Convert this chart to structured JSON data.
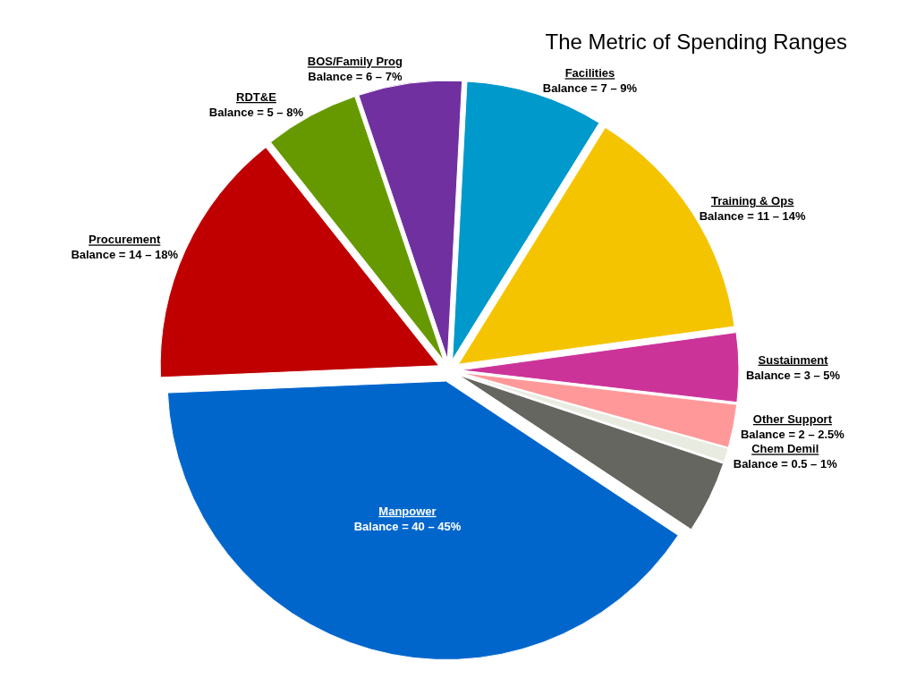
{
  "chart_data": {
    "type": "pie",
    "title": "The Metric of Spending Ranges",
    "categories": [
      "Facilities",
      "Training & Ops",
      "Sustainment",
      "Other Support",
      "Chem Demil",
      null,
      "Manpower",
      "Procurement",
      "RDT&E",
      "BOS/Family Prog"
    ],
    "values": [
      8,
      14,
      4,
      2.5,
      0.8,
      4.2,
      40,
      15,
      5.5,
      6
    ],
    "colors": [
      "#0099cc",
      "#f5c400",
      "#cc3399",
      "#ff9999",
      "#e8ebe0",
      "#666660",
      "#0066cc",
      "#c00000",
      "#669900",
      "#7030a0"
    ],
    "annotations": [
      {
        "text": "Balance = 7 – 9%",
        "x": "Facilities"
      },
      {
        "text": "Balance = 11 – 14%",
        "x": "Training & Ops"
      },
      {
        "text": "Balance = 3 – 5%",
        "x": "Sustainment"
      },
      {
        "text": "Balance = 2 – 2.5%",
        "x": "Other Support"
      },
      {
        "text": "Balance = 0.5 – 1%",
        "x": "Chem Demil"
      },
      {
        "text": "Balance = 40 – 45%",
        "x": "Manpower"
      },
      {
        "text": "Balance = 14 – 18%",
        "x": "Procurement"
      },
      {
        "text": "Balance = 5 – 8%",
        "x": "RDT&E"
      },
      {
        "text": "Balance = 6 – 7%",
        "x": "BOS/Family Prog"
      }
    ]
  }
}
